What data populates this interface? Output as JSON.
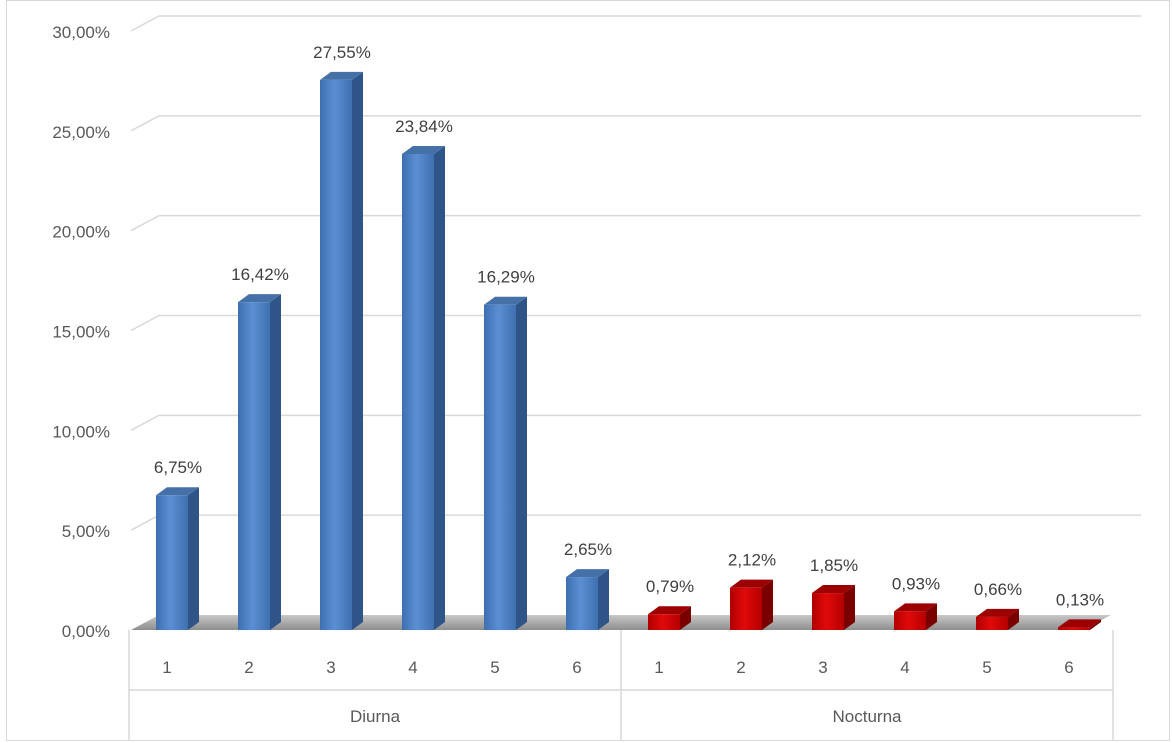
{
  "chart_data": {
    "type": "bar",
    "title": "",
    "xlabel": "",
    "ylabel": "",
    "ylim": [
      0,
      30
    ],
    "y_ticks": [
      "0,00%",
      "5,00%",
      "10,00%",
      "15,00%",
      "20,00%",
      "25,00%",
      "30,00%"
    ],
    "grid": true,
    "groups": [
      {
        "name": "Diurna",
        "categories": [
          "1",
          "2",
          "3",
          "4",
          "5",
          "6"
        ],
        "values": [
          6.75,
          16.42,
          27.55,
          23.84,
          16.29,
          2.65
        ],
        "labels": [
          "6,75%",
          "16,42%",
          "27,55%",
          "23,84%",
          "16,29%",
          "2,65%"
        ],
        "color": "#4f81bd"
      },
      {
        "name": "Nocturna",
        "categories": [
          "1",
          "2",
          "3",
          "4",
          "5",
          "6"
        ],
        "values": [
          0.79,
          2.12,
          1.85,
          0.93,
          0.66,
          0.13
        ],
        "labels": [
          "0,79%",
          "2,12%",
          "1,85%",
          "0,93%",
          "0,66%",
          "0,13%"
        ],
        "color": "#c00000"
      }
    ]
  }
}
